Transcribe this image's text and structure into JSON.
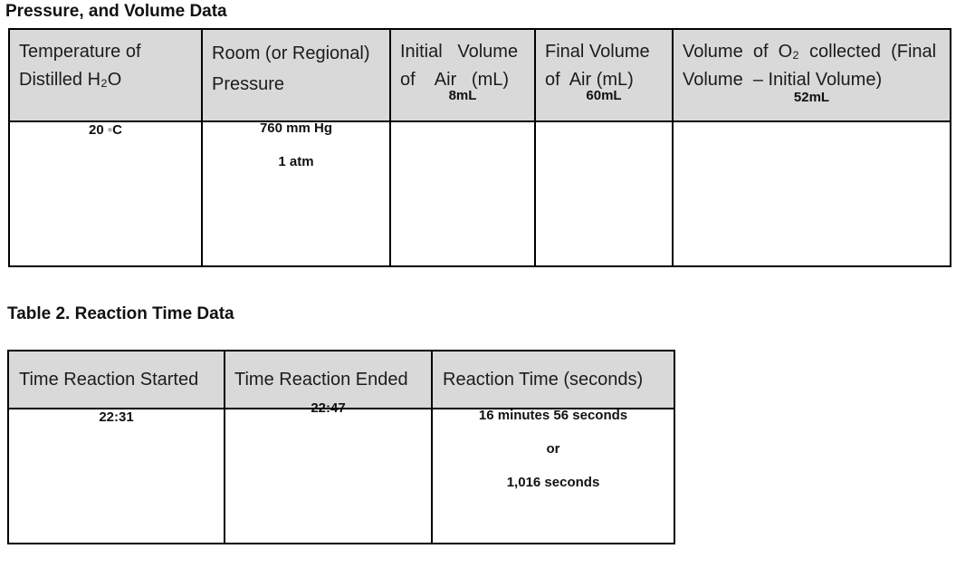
{
  "table1": {
    "caption": "Pressure, and Volume Data",
    "headers": [
      [
        "Temperature of",
        "Distilled H₂O"
      ],
      [
        "Room (or Regional)",
        "Pressure"
      ],
      [
        "Initial   Volume",
        "of    Air   (mL)"
      ],
      [
        "Final Volume",
        "of  Air (mL)"
      ],
      [
        "Volume  of  O₂  collected  (Final",
        "Volume  – Initial Volume)"
      ]
    ],
    "row": {
      "temperature": "20 ◦C",
      "pressure_mmhg": "760 mm Hg",
      "pressure_atm": "1 atm",
      "initial_volume": "8mL",
      "final_volume": "60mL",
      "o2_collected": "52mL"
    }
  },
  "table2": {
    "caption": "Table 2. Reaction Time Data",
    "headers": [
      "Time Reaction Started",
      "Time Reaction Ended",
      "Reaction Time (seconds)"
    ],
    "row": {
      "started": "22:31",
      "ended": "22:47",
      "reaction_time_minutes": "16 minutes 56 seconds",
      "or": "or",
      "reaction_time_seconds": "1,016 seconds"
    }
  }
}
